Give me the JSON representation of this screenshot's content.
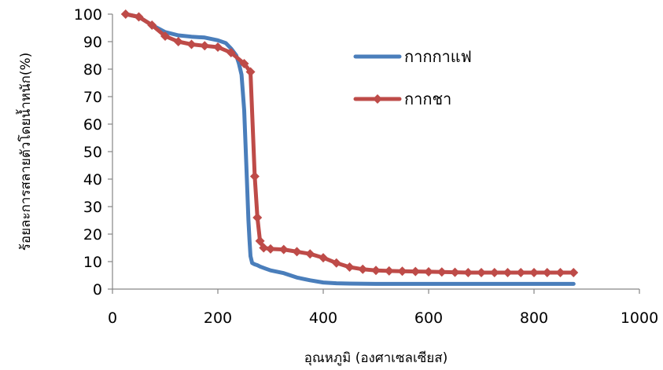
{
  "chart_data": {
    "type": "line",
    "title": "",
    "xlabel": "อุณหภูมิ (องศาเซลเซียส)",
    "ylabel": "ร้อยละการสลายตัวโดยน้ำหนัก(%)",
    "xlim": [
      0,
      1000
    ],
    "ylim": [
      0,
      100
    ],
    "x_ticks": [
      "0",
      "200",
      "400",
      "600",
      "800",
      "1000"
    ],
    "y_ticks": [
      "0",
      "10",
      "20",
      "30",
      "40",
      "50",
      "60",
      "70",
      "80",
      "90",
      "100"
    ],
    "grid": false,
    "legend_position": "right",
    "series": [
      {
        "name": "กากกาแฟ",
        "color": "#4a7ebb",
        "marker": "none",
        "x": [
          25,
          50,
          75,
          100,
          125,
          150,
          175,
          200,
          215,
          225,
          235,
          240,
          245,
          250,
          255,
          258,
          260,
          262,
          265,
          270,
          275,
          280,
          290,
          300,
          325,
          350,
          375,
          400,
          425,
          450,
          500,
          550,
          600,
          650,
          700,
          750,
          800,
          850,
          875
        ],
        "y": [
          100,
          99,
          96,
          93.5,
          92.3,
          91.8,
          91.5,
          90.5,
          89.5,
          87.5,
          85,
          82,
          78,
          65,
          40,
          25,
          18,
          12,
          9.5,
          9,
          8.7,
          8.2,
          7.5,
          6.8,
          5.8,
          4.2,
          3.2,
          2.4,
          2.1,
          2.0,
          1.9,
          1.9,
          1.9,
          1.9,
          1.9,
          1.9,
          1.9,
          1.9,
          1.9
        ]
      },
      {
        "name": "กากชา",
        "color": "#be4b48",
        "marker": "diamond",
        "x": [
          25,
          50,
          75,
          100,
          125,
          150,
          175,
          200,
          225,
          250,
          262,
          270,
          275,
          280,
          287,
          300,
          325,
          350,
          375,
          400,
          425,
          450,
          475,
          500,
          525,
          550,
          575,
          600,
          625,
          650,
          675,
          700,
          725,
          750,
          775,
          800,
          825,
          850,
          875
        ],
        "y": [
          100,
          99,
          96,
          92,
          90,
          89,
          88.5,
          88,
          86,
          82,
          79,
          41,
          26,
          17.5,
          15,
          14.6,
          14.4,
          13.6,
          12.8,
          11.4,
          9.5,
          8,
          7.2,
          6.8,
          6.6,
          6.5,
          6.4,
          6.3,
          6.2,
          6.1,
          6,
          6,
          6,
          6,
          6,
          6,
          6,
          6,
          6
        ]
      }
    ]
  }
}
